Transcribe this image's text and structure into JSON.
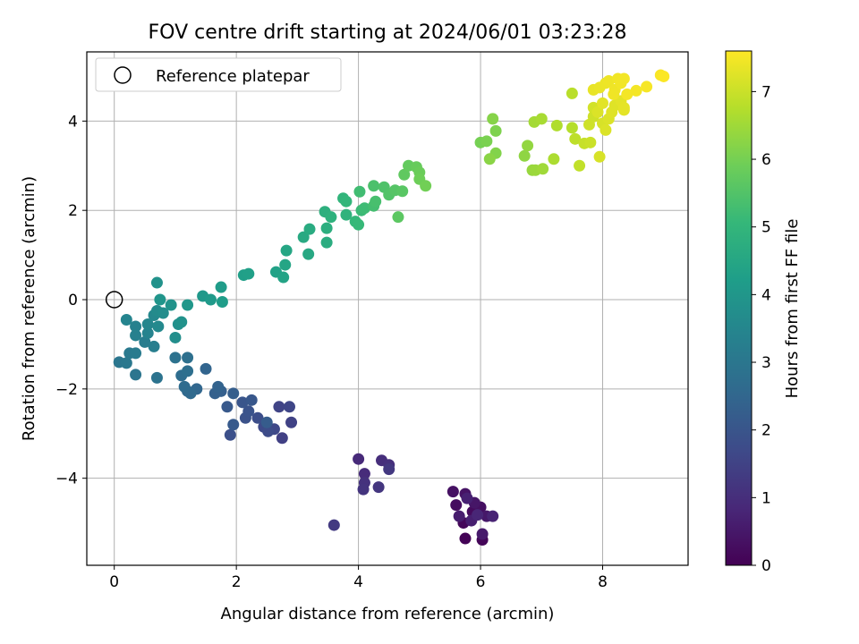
{
  "chart_data": {
    "type": "scatter",
    "title": "FOV centre drift starting at 2024/06/01 03:23:28",
    "xlabel": "Angular distance from reference (arcmin)",
    "ylabel": "Rotation from reference (arcmin)",
    "xlim": [
      -0.45,
      9.4
    ],
    "ylim": [
      -5.95,
      5.55
    ],
    "xticks": [
      0,
      2,
      4,
      6,
      8
    ],
    "yticks": [
      -4,
      -2,
      0,
      2,
      4
    ],
    "grid": true,
    "legend": {
      "placement": "upper-left",
      "entries": [
        {
          "label": "Reference platepar",
          "marker": "open-circle",
          "x": 0,
          "y": 0
        }
      ]
    },
    "colorbar": {
      "label": "Hours from first FF file",
      "colormap": "viridis",
      "range": [
        0,
        7.6
      ],
      "ticks": [
        0,
        1,
        2,
        3,
        4,
        5,
        6,
        7
      ]
    },
    "colors": {
      "viridis": [
        "#440154",
        "#482878",
        "#3e4a89",
        "#31688e",
        "#26828e",
        "#1f9e89",
        "#35b779",
        "#6ece58",
        "#b5de2b",
        "#fde725"
      ]
    },
    "points": [
      {
        "x": 5.75,
        "y": -5.35,
        "h": 0.05
      },
      {
        "x": 6.03,
        "y": -5.38,
        "h": 0.1
      },
      {
        "x": 5.72,
        "y": -5.0,
        "h": 0.15
      },
      {
        "x": 5.87,
        "y": -4.75,
        "h": 0.2
      },
      {
        "x": 5.6,
        "y": -4.6,
        "h": 0.25
      },
      {
        "x": 6.0,
        "y": -4.65,
        "h": 0.3
      },
      {
        "x": 5.55,
        "y": -4.3,
        "h": 0.35
      },
      {
        "x": 5.75,
        "y": -4.35,
        "h": 0.4
      },
      {
        "x": 5.9,
        "y": -4.55,
        "h": 0.45
      },
      {
        "x": 6.1,
        "y": -4.85,
        "h": 0.5
      },
      {
        "x": 6.03,
        "y": -5.25,
        "h": 0.55
      },
      {
        "x": 5.65,
        "y": -4.85,
        "h": 0.6
      },
      {
        "x": 5.85,
        "y": -4.95,
        "h": 0.65
      },
      {
        "x": 5.78,
        "y": -4.45,
        "h": 0.7
      },
      {
        "x": 6.2,
        "y": -4.85,
        "h": 0.75
      },
      {
        "x": 5.95,
        "y": -4.82,
        "h": 0.8
      },
      {
        "x": 4.0,
        "y": -3.57,
        "h": 0.9
      },
      {
        "x": 4.1,
        "y": -3.9,
        "h": 0.95
      },
      {
        "x": 4.38,
        "y": -3.6,
        "h": 1.0
      },
      {
        "x": 4.5,
        "y": -3.7,
        "h": 1.05
      },
      {
        "x": 4.1,
        "y": -4.1,
        "h": 1.1
      },
      {
        "x": 4.08,
        "y": -4.25,
        "h": 1.15
      },
      {
        "x": 4.33,
        "y": -4.2,
        "h": 1.2
      },
      {
        "x": 4.5,
        "y": -3.8,
        "h": 1.25
      },
      {
        "x": 3.6,
        "y": -5.05,
        "h": 1.3
      },
      {
        "x": 2.75,
        "y": -3.1,
        "h": 1.45
      },
      {
        "x": 2.9,
        "y": -2.75,
        "h": 1.5
      },
      {
        "x": 2.7,
        "y": -2.4,
        "h": 1.55
      },
      {
        "x": 2.87,
        "y": -2.4,
        "h": 1.6
      },
      {
        "x": 2.62,
        "y": -2.9,
        "h": 1.65
      },
      {
        "x": 2.45,
        "y": -2.85,
        "h": 1.7
      },
      {
        "x": 2.52,
        "y": -2.95,
        "h": 1.75
      },
      {
        "x": 2.35,
        "y": -2.65,
        "h": 1.8
      },
      {
        "x": 1.9,
        "y": -3.03,
        "h": 1.85
      },
      {
        "x": 2.15,
        "y": -2.65,
        "h": 1.9
      },
      {
        "x": 2.2,
        "y": -2.5,
        "h": 1.95
      },
      {
        "x": 2.1,
        "y": -2.3,
        "h": 2.0
      },
      {
        "x": 2.25,
        "y": -2.25,
        "h": 2.05
      },
      {
        "x": 1.85,
        "y": -2.4,
        "h": 2.1
      },
      {
        "x": 1.95,
        "y": -2.8,
        "h": 2.15
      },
      {
        "x": 2.5,
        "y": -2.75,
        "h": 2.2
      },
      {
        "x": 1.95,
        "y": -2.1,
        "h": 2.25
      },
      {
        "x": 1.75,
        "y": -2.05,
        "h": 2.3
      },
      {
        "x": 1.65,
        "y": -2.1,
        "h": 2.35
      },
      {
        "x": 1.7,
        "y": -1.95,
        "h": 2.4
      },
      {
        "x": 1.5,
        "y": -1.55,
        "h": 2.45
      },
      {
        "x": 1.35,
        "y": -2.0,
        "h": 2.5
      },
      {
        "x": 1.2,
        "y": -2.05,
        "h": 2.55
      },
      {
        "x": 1.25,
        "y": -2.1,
        "h": 2.6
      },
      {
        "x": 1.15,
        "y": -1.95,
        "h": 2.65
      },
      {
        "x": 1.1,
        "y": -1.7,
        "h": 2.7
      },
      {
        "x": 1.2,
        "y": -1.6,
        "h": 2.75
      },
      {
        "x": 1.2,
        "y": -1.3,
        "h": 2.8
      },
      {
        "x": 1.0,
        "y": -1.3,
        "h": 2.85
      },
      {
        "x": 0.7,
        "y": -1.75,
        "h": 2.9
      },
      {
        "x": 0.35,
        "y": -1.68,
        "h": 2.95
      },
      {
        "x": 0.08,
        "y": -1.4,
        "h": 3.0
      },
      {
        "x": 0.2,
        "y": -1.42,
        "h": 3.05
      },
      {
        "x": 0.25,
        "y": -1.2,
        "h": 3.1
      },
      {
        "x": 0.35,
        "y": -1.2,
        "h": 3.15
      },
      {
        "x": 0.5,
        "y": -0.95,
        "h": 3.2
      },
      {
        "x": 0.65,
        "y": -1.05,
        "h": 3.25
      },
      {
        "x": 0.35,
        "y": -0.8,
        "h": 3.3
      },
      {
        "x": 0.35,
        "y": -0.6,
        "h": 3.35
      },
      {
        "x": 0.55,
        "y": -0.75,
        "h": 3.4
      },
      {
        "x": 0.2,
        "y": -0.45,
        "h": 3.45
      },
      {
        "x": 0.55,
        "y": -0.55,
        "h": 3.5
      },
      {
        "x": 0.65,
        "y": -0.35,
        "h": 3.55
      },
      {
        "x": 0.72,
        "y": -0.6,
        "h": 3.6
      },
      {
        "x": 0.7,
        "y": -0.25,
        "h": 3.65
      },
      {
        "x": 0.8,
        "y": -0.3,
        "h": 3.7
      },
      {
        "x": 1.0,
        "y": -0.85,
        "h": 3.75
      },
      {
        "x": 1.05,
        "y": -0.55,
        "h": 3.8
      },
      {
        "x": 1.1,
        "y": -0.5,
        "h": 3.85
      },
      {
        "x": 0.93,
        "y": -0.12,
        "h": 3.9
      },
      {
        "x": 0.75,
        "y": 0.0,
        "h": 3.95
      },
      {
        "x": 1.2,
        "y": -0.12,
        "h": 4.0
      },
      {
        "x": 0.7,
        "y": 0.38,
        "h": 3.85
      },
      {
        "x": 1.45,
        "y": 0.08,
        "h": 4.05
      },
      {
        "x": 1.58,
        "y": 0.0,
        "h": 4.1
      },
      {
        "x": 1.75,
        "y": 0.28,
        "h": 4.15
      },
      {
        "x": 1.77,
        "y": -0.05,
        "h": 4.2
      },
      {
        "x": 2.12,
        "y": 0.55,
        "h": 4.25
      },
      {
        "x": 2.2,
        "y": 0.58,
        "h": 4.3
      },
      {
        "x": 2.65,
        "y": 0.62,
        "h": 4.35
      },
      {
        "x": 2.77,
        "y": 0.5,
        "h": 4.4
      },
      {
        "x": 2.8,
        "y": 0.78,
        "h": 4.45
      },
      {
        "x": 2.82,
        "y": 1.1,
        "h": 4.5
      },
      {
        "x": 3.18,
        "y": 1.02,
        "h": 4.55
      },
      {
        "x": 3.1,
        "y": 1.4,
        "h": 4.6
      },
      {
        "x": 3.2,
        "y": 1.58,
        "h": 4.65
      },
      {
        "x": 3.48,
        "y": 1.28,
        "h": 4.7
      },
      {
        "x": 3.48,
        "y": 1.6,
        "h": 4.75
      },
      {
        "x": 3.45,
        "y": 1.97,
        "h": 4.8
      },
      {
        "x": 3.55,
        "y": 1.85,
        "h": 4.85
      },
      {
        "x": 3.8,
        "y": 1.9,
        "h": 4.9
      },
      {
        "x": 3.75,
        "y": 2.27,
        "h": 4.95
      },
      {
        "x": 3.8,
        "y": 2.2,
        "h": 5.0
      },
      {
        "x": 3.95,
        "y": 1.75,
        "h": 5.05
      },
      {
        "x": 4.0,
        "y": 1.68,
        "h": 5.1
      },
      {
        "x": 4.05,
        "y": 2.0,
        "h": 5.15
      },
      {
        "x": 4.1,
        "y": 2.05,
        "h": 5.2
      },
      {
        "x": 4.02,
        "y": 2.42,
        "h": 5.25
      },
      {
        "x": 4.25,
        "y": 2.1,
        "h": 5.3
      },
      {
        "x": 4.28,
        "y": 2.2,
        "h": 5.35
      },
      {
        "x": 4.25,
        "y": 2.55,
        "h": 5.4
      },
      {
        "x": 4.42,
        "y": 2.52,
        "h": 5.45
      },
      {
        "x": 4.5,
        "y": 2.35,
        "h": 5.5
      },
      {
        "x": 4.6,
        "y": 2.45,
        "h": 5.55
      },
      {
        "x": 4.72,
        "y": 2.43,
        "h": 5.6
      },
      {
        "x": 4.65,
        "y": 1.85,
        "h": 5.65
      },
      {
        "x": 4.75,
        "y": 2.8,
        "h": 5.7
      },
      {
        "x": 4.82,
        "y": 3.0,
        "h": 5.75
      },
      {
        "x": 4.95,
        "y": 2.97,
        "h": 5.8
      },
      {
        "x": 5.0,
        "y": 2.85,
        "h": 5.85
      },
      {
        "x": 5.0,
        "y": 2.7,
        "h": 5.9
      },
      {
        "x": 5.1,
        "y": 2.55,
        "h": 5.95
      },
      {
        "x": 6.0,
        "y": 3.52,
        "h": 6.0
      },
      {
        "x": 6.1,
        "y": 3.55,
        "h": 6.05
      },
      {
        "x": 6.25,
        "y": 3.78,
        "h": 6.1
      },
      {
        "x": 6.25,
        "y": 3.28,
        "h": 6.15
      },
      {
        "x": 6.2,
        "y": 4.05,
        "h": 6.2
      },
      {
        "x": 6.15,
        "y": 3.15,
        "h": 6.25
      },
      {
        "x": 6.72,
        "y": 3.22,
        "h": 6.3
      },
      {
        "x": 6.77,
        "y": 3.45,
        "h": 6.35
      },
      {
        "x": 6.85,
        "y": 2.9,
        "h": 6.4
      },
      {
        "x": 6.9,
        "y": 2.9,
        "h": 6.45
      },
      {
        "x": 7.02,
        "y": 2.93,
        "h": 6.5
      },
      {
        "x": 6.88,
        "y": 3.98,
        "h": 6.55
      },
      {
        "x": 7.0,
        "y": 4.05,
        "h": 6.6
      },
      {
        "x": 7.2,
        "y": 3.15,
        "h": 6.65
      },
      {
        "x": 7.25,
        "y": 3.9,
        "h": 6.7
      },
      {
        "x": 7.5,
        "y": 3.85,
        "h": 6.75
      },
      {
        "x": 7.5,
        "y": 4.62,
        "h": 6.8
      },
      {
        "x": 7.55,
        "y": 3.6,
        "h": 6.85
      },
      {
        "x": 7.62,
        "y": 3.0,
        "h": 6.9
      },
      {
        "x": 7.7,
        "y": 3.5,
        "h": 6.95
      },
      {
        "x": 7.8,
        "y": 3.52,
        "h": 7.0
      },
      {
        "x": 7.78,
        "y": 3.92,
        "h": 7.05
      },
      {
        "x": 7.85,
        "y": 4.1,
        "h": 7.05
      },
      {
        "x": 7.85,
        "y": 4.3,
        "h": 7.1
      },
      {
        "x": 7.9,
        "y": 4.25,
        "h": 7.1
      },
      {
        "x": 7.95,
        "y": 3.2,
        "h": 7.15
      },
      {
        "x": 8.0,
        "y": 3.95,
        "h": 7.15
      },
      {
        "x": 8.05,
        "y": 3.8,
        "h": 7.2
      },
      {
        "x": 8.1,
        "y": 4.05,
        "h": 7.2
      },
      {
        "x": 8.15,
        "y": 4.2,
        "h": 7.25
      },
      {
        "x": 8.2,
        "y": 4.35,
        "h": 7.25
      },
      {
        "x": 8.3,
        "y": 4.45,
        "h": 7.3
      },
      {
        "x": 8.35,
        "y": 4.25,
        "h": 7.3
      },
      {
        "x": 8.35,
        "y": 4.3,
        "h": 7.32
      },
      {
        "x": 7.85,
        "y": 4.7,
        "h": 7.35
      },
      {
        "x": 7.95,
        "y": 4.75,
        "h": 7.38
      },
      {
        "x": 8.05,
        "y": 4.85,
        "h": 7.4
      },
      {
        "x": 8.1,
        "y": 4.9,
        "h": 7.42
      },
      {
        "x": 8.2,
        "y": 4.7,
        "h": 7.44
      },
      {
        "x": 8.25,
        "y": 4.95,
        "h": 7.46
      },
      {
        "x": 8.35,
        "y": 4.95,
        "h": 7.48
      },
      {
        "x": 8.4,
        "y": 4.6,
        "h": 7.5
      },
      {
        "x": 8.55,
        "y": 4.68,
        "h": 7.5
      },
      {
        "x": 8.72,
        "y": 4.77,
        "h": 7.52
      },
      {
        "x": 8.95,
        "y": 5.03,
        "h": 7.55
      },
      {
        "x": 9.0,
        "y": 5.0,
        "h": 7.58
      },
      {
        "x": 8.18,
        "y": 4.6,
        "h": 7.45
      },
      {
        "x": 8.3,
        "y": 4.85,
        "h": 7.47
      },
      {
        "x": 7.92,
        "y": 4.2,
        "h": 7.2
      },
      {
        "x": 8.0,
        "y": 4.4,
        "h": 7.28
      }
    ]
  }
}
